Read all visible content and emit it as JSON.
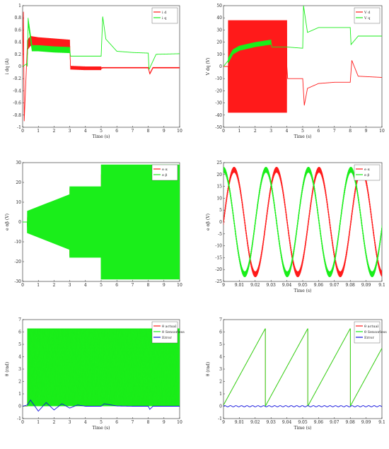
{
  "colors": {
    "red": "#ff1a1a",
    "green": "#1aee1a",
    "blue": "#1010dd"
  },
  "chart_data": [
    {
      "type": "line",
      "xlabel": "Time (s)",
      "ylabel": "i dq (A)",
      "xlim": [
        0,
        10
      ],
      "ylim": [
        -1,
        1
      ],
      "xticks": [
        "0",
        "1",
        "2",
        "3",
        "4",
        "5",
        "6",
        "7",
        "8",
        "9",
        "10"
      ],
      "yticks": [
        "1",
        "0.8",
        "0.6",
        "0.4",
        "0.2",
        "0",
        "-0.2",
        "-0.4",
        "-0.6",
        "-0.8",
        "-1"
      ],
      "legend_position": "top-right",
      "series": [
        {
          "name": "i d",
          "color": "red",
          "x": [
            0,
            0.05,
            0.1,
            0.3,
            0.5,
            1,
            2,
            3,
            3.05,
            4,
            5,
            5.1,
            6,
            7,
            8,
            8.1,
            8.3,
            9,
            10
          ],
          "y": [
            0,
            0.9,
            -0.9,
            0.35,
            0.42,
            0.4,
            0.38,
            0.36,
            -0.02,
            -0.03,
            -0.03,
            -0.02,
            -0.02,
            -0.02,
            -0.02,
            -0.12,
            -0.02,
            -0.02,
            -0.02
          ],
          "ripple": [
            [
              0.3,
              3,
              0.08
            ],
            [
              3,
              5,
              0.03
            ],
            [
              5,
              10,
              0.01
            ]
          ]
        },
        {
          "name": "i q",
          "color": "green",
          "x": [
            0,
            0.3,
            0.35,
            0.6,
            1,
            2,
            3,
            3.05,
            5,
            5.1,
            5.3,
            6,
            7,
            8,
            8.05,
            8.5,
            10
          ],
          "y": [
            0,
            0.05,
            0.75,
            0.3,
            0.3,
            0.28,
            0.27,
            0.17,
            0.17,
            0.82,
            0.45,
            0.25,
            0.23,
            0.22,
            -0.05,
            0.2,
            0.21
          ],
          "ripple": [
            [
              0.3,
              3,
              0.05
            ]
          ]
        }
      ]
    },
    {
      "type": "line",
      "xlabel": "Time (s)",
      "ylabel": "V dq (V)",
      "xlim": [
        0,
        10
      ],
      "ylim": [
        -50,
        50
      ],
      "xticks": [
        "0",
        "1",
        "2",
        "3",
        "4",
        "5",
        "6",
        "7",
        "8",
        "9",
        "10"
      ],
      "yticks": [
        "50",
        "40",
        "30",
        "20",
        "10",
        "0",
        "-10",
        "-20",
        "-30",
        "-40",
        "-50"
      ],
      "legend_position": "top-right",
      "series": [
        {
          "name": "V d",
          "color": "red",
          "x": [
            0,
            0.3,
            4,
            4.05,
            5,
            5.1,
            5.3,
            6,
            7,
            8,
            8.1,
            8.5,
            10
          ],
          "y": [
            0,
            0,
            0,
            -10,
            -10,
            -32,
            -18,
            -14,
            -13,
            -13,
            5,
            -8,
            -9
          ],
          "ripple": [
            [
              0.3,
              4,
              38
            ]
          ]
        },
        {
          "name": "V q",
          "color": "green",
          "x": [
            0,
            0.3,
            0.6,
            1,
            2,
            3,
            3.05,
            4,
            5,
            5.05,
            5.3,
            6,
            7,
            8,
            8.05,
            8.5,
            10
          ],
          "y": [
            0,
            5,
            12,
            15,
            18,
            20,
            16,
            16,
            15,
            50,
            28,
            32,
            32,
            32,
            18,
            25,
            25
          ],
          "ripple": [
            [
              0.3,
              3,
              2
            ]
          ]
        }
      ]
    },
    {
      "type": "line",
      "xlabel": "",
      "ylabel": "e αβ (V)",
      "xlim": [
        0,
        10
      ],
      "ylim": [
        -30,
        30
      ],
      "xticks": [
        "0",
        "1",
        "2",
        "3",
        "4",
        "5",
        "6",
        "7",
        "8",
        "9",
        "10"
      ],
      "yticks": [
        "30",
        "20",
        "10",
        "0",
        "-10",
        "-20",
        "-30"
      ],
      "legend_position": "top-right",
      "series": [
        {
          "name": "e α",
          "color": "red",
          "envelope": [
            [
              0.3,
              3
            ],
            [
              3,
              5
            ],
            [
              5,
              10
            ]
          ],
          "amp": [
            6,
            17,
            24
          ]
        },
        {
          "name": "e β",
          "color": "green",
          "envelope": [
            [
              0.3,
              3
            ],
            [
              3,
              5
            ],
            [
              5,
              10
            ]
          ],
          "amp": [
            14,
            18,
            29
          ]
        }
      ]
    },
    {
      "type": "line",
      "xlabel": "Time (s)",
      "ylabel": "e αβ (V)",
      "xlim": [
        9,
        9.1
      ],
      "ylim": [
        -25,
        25
      ],
      "xticks": [
        "9",
        "9.01",
        "9.02",
        "9.03",
        "9.04",
        "9.05",
        "9.06",
        "9.07",
        "9.08",
        "9.09",
        "9.1"
      ],
      "yticks": [
        "25",
        "20",
        "15",
        "10",
        "5",
        "0",
        "-5",
        "-10",
        "-15",
        "-20",
        "-25"
      ],
      "legend_position": "top-right",
      "series": [
        {
          "name": "e α",
          "color": "red",
          "amplitude": 22,
          "period": 0.0268,
          "phase": 0
        },
        {
          "name": "e β",
          "color": "green",
          "amplitude": 22,
          "period": 0.0268,
          "phase": 1.57
        }
      ]
    },
    {
      "type": "line",
      "xlabel": "Time (s)",
      "ylabel": "θ (rad)",
      "xlim": [
        0,
        10
      ],
      "ylim": [
        -1,
        7
      ],
      "xticks": [
        "0",
        "1",
        "2",
        "3",
        "4",
        "5",
        "6",
        "7",
        "8",
        "9",
        "10"
      ],
      "yticks": [
        "7",
        "6",
        "5",
        "4",
        "3",
        "2",
        "1",
        "0",
        "-1"
      ],
      "legend_position": "top-right",
      "series": [
        {
          "name": "θ actual",
          "color": "red",
          "fill_range": [
            0,
            6.28
          ]
        },
        {
          "name": "θ Sensorless",
          "color": "green",
          "fill_range": [
            0,
            6.28
          ]
        },
        {
          "name": "Error",
          "color": "blue",
          "x": [
            0,
            0.3,
            0.5,
            1,
            1.5,
            2,
            2.5,
            3,
            3.5,
            4,
            5,
            5.2,
            6,
            7,
            8,
            8.1,
            8.3,
            9,
            10
          ],
          "y": [
            0,
            0.1,
            0.5,
            -0.4,
            0.3,
            -0.3,
            0.2,
            -0.15,
            0.1,
            0,
            0,
            0.2,
            0.02,
            0,
            0,
            -0.25,
            0,
            0,
            0
          ]
        }
      ]
    },
    {
      "type": "line",
      "xlabel": "Time (s)",
      "ylabel": "θ (rad)",
      "xlim": [
        9,
        9.1
      ],
      "ylim": [
        -1,
        7
      ],
      "xticks": [
        "9",
        "9.01",
        "9.02",
        "9.03",
        "9.04",
        "9.05",
        "9.06",
        "9.07",
        "9.08",
        "9.09",
        "9.1"
      ],
      "yticks": [
        "7",
        "6",
        "5",
        "4",
        "3",
        "2",
        "1",
        "0",
        "-1"
      ],
      "legend_position": "top-right",
      "series": [
        {
          "name": "θ actual",
          "color": "red",
          "sawtooth": {
            "period": 0.0268,
            "offset": 9.0264
          }
        },
        {
          "name": "θ Sensorless",
          "color": "green",
          "sawtooth": {
            "period": 0.0268,
            "offset": 9.0264
          }
        },
        {
          "name": "Error",
          "color": "blue",
          "constant": 0
        }
      ]
    }
  ]
}
